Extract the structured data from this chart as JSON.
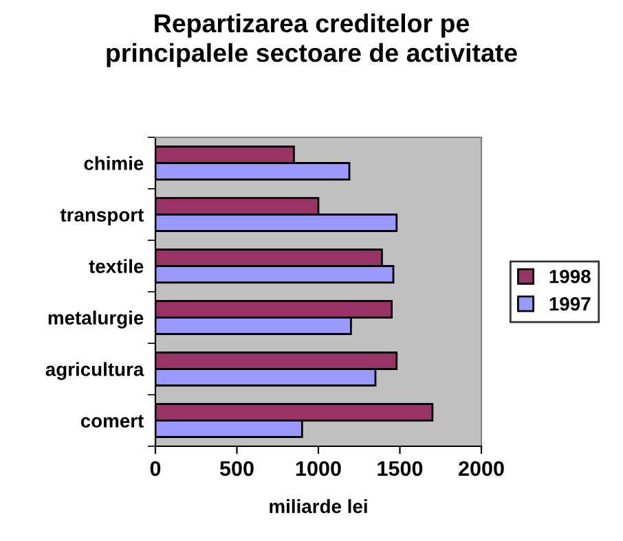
{
  "chart_data": {
    "type": "bar",
    "orientation": "horizontal",
    "title": "Repartizarea creditelor pe\nprincipalele sectoare de activitate",
    "xlabel": "miliarde lei",
    "categories": [
      "chimie",
      "transport",
      "textile",
      "metalurgie",
      "agricultura",
      "comert"
    ],
    "series": [
      {
        "name": "1998",
        "color": "#993366",
        "values": [
          850,
          1000,
          1390,
          1450,
          1480,
          1700
        ]
      },
      {
        "name": "1997",
        "color": "#9999ff",
        "values": [
          1190,
          1480,
          1460,
          1200,
          1350,
          900
        ]
      }
    ],
    "xlim": [
      0,
      2000
    ],
    "xticks": [
      0,
      500,
      1000,
      1500,
      2000
    ],
    "grid": false,
    "legend": "right"
  }
}
